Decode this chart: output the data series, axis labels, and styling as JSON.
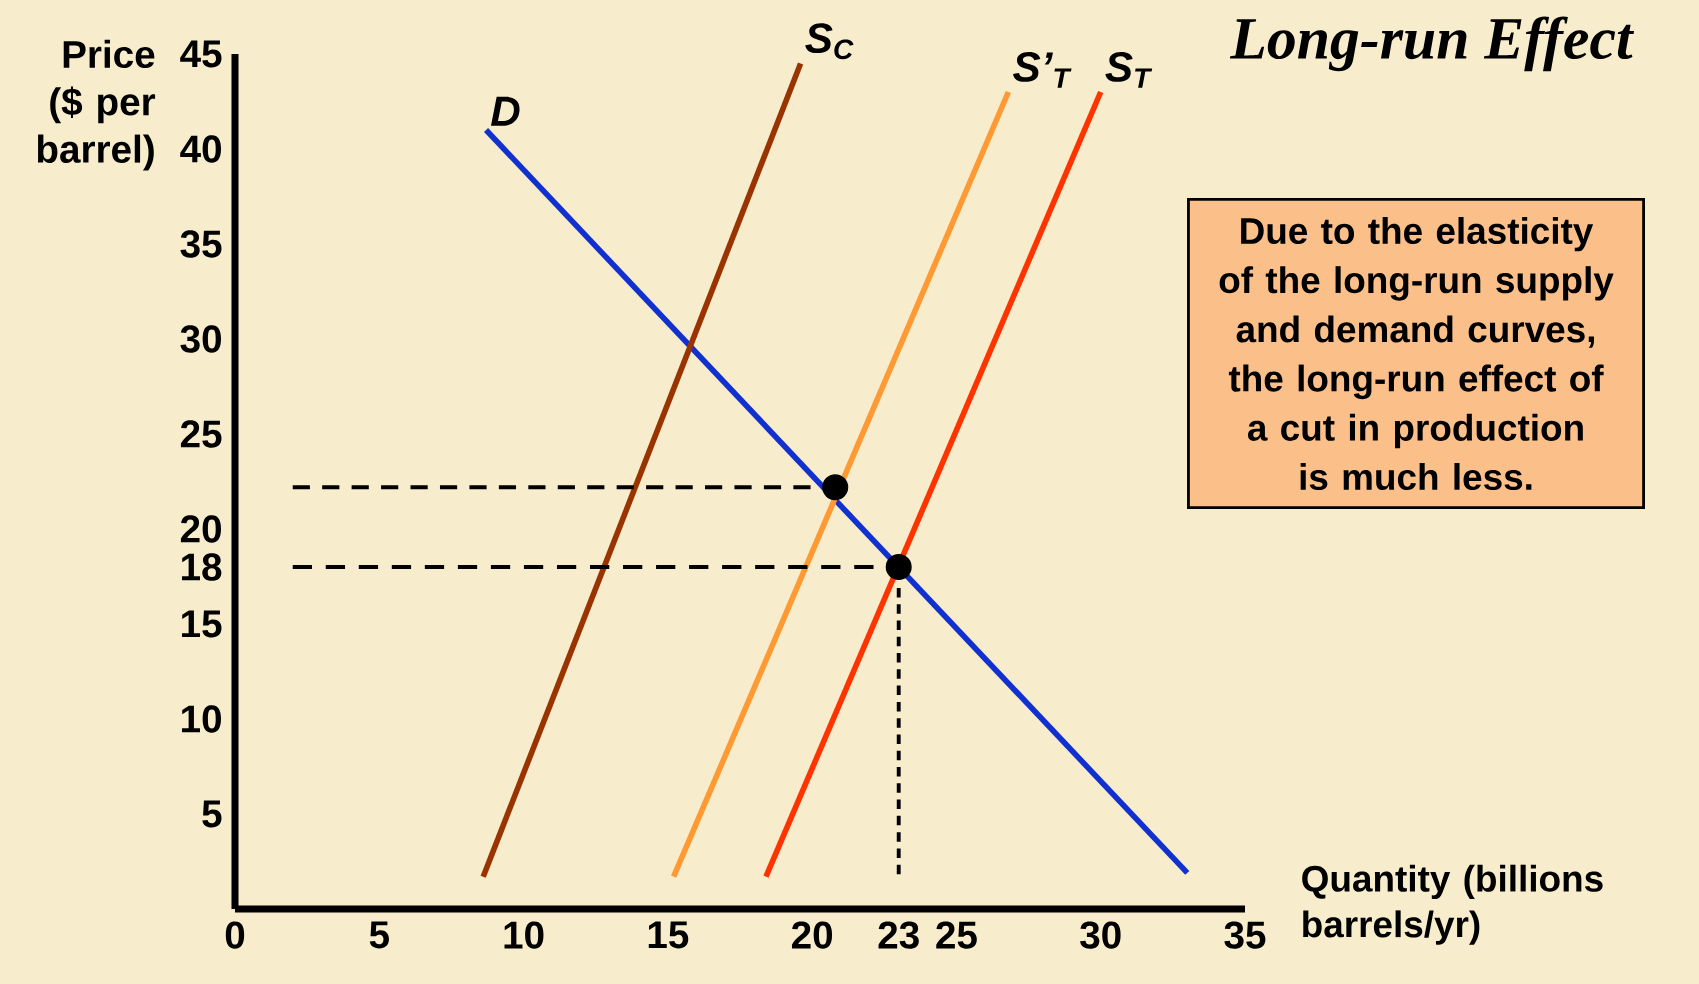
{
  "chart_data": {
    "type": "line",
    "title": "Long-run Effect",
    "xlabel": "Quantity (billions barrels/yr)",
    "ylabel": "Price ($ per barrel)",
    "xlim": [
      0,
      35
    ],
    "ylim": [
      0,
      45
    ],
    "xticks": [
      0,
      5,
      10,
      15,
      20,
      23,
      25,
      30,
      35
    ],
    "yticks": [
      5,
      10,
      15,
      18,
      20,
      25,
      30,
      35,
      40,
      45
    ],
    "grid": false,
    "legend": false,
    "marker": "none",
    "annotations": [
      "Due to the elasticity of the long-run supply and demand curves, the long-run effect of a cut in production is much less."
    ],
    "series": [
      {
        "name": "D",
        "color": "#1030d0",
        "x": [
          8.7,
          33.0
        ],
        "values": [
          41,
          1.9
        ]
      },
      {
        "name": "S$_{C}$",
        "color": "#993300",
        "x": [
          8.6,
          19.6
        ],
        "values": [
          1.7,
          44.5
        ]
      },
      {
        "name": "S’$_{T}$",
        "color": "#ff9933",
        "x": [
          15.2,
          26.8
        ],
        "values": [
          1.7,
          43
        ]
      },
      {
        "name": "S$_{T}$",
        "color": "#ff3300",
        "x": [
          18.4,
          30.0
        ],
        "values": [
          1.7,
          43
        ]
      },
      {
        "color": "#000000",
        "line_style": "dashed",
        "x": [
          2,
          20.1
        ],
        "values": [
          22.2,
          22.2
        ]
      },
      {
        "color": "#000000",
        "line_style": "dashed",
        "x": [
          2,
          22.3
        ],
        "values": [
          18,
          18
        ]
      },
      {
        "color": "#000000",
        "line_style": "dashed",
        "x": [
          23,
          23
        ],
        "values": [
          16.9,
          1.7
        ]
      },
      {
        "type": "scatter",
        "color": "#000000",
        "marker": "circle",
        "x": [
          20.8,
          23
        ],
        "values": [
          22.2,
          18
        ]
      }
    ]
  }
}
